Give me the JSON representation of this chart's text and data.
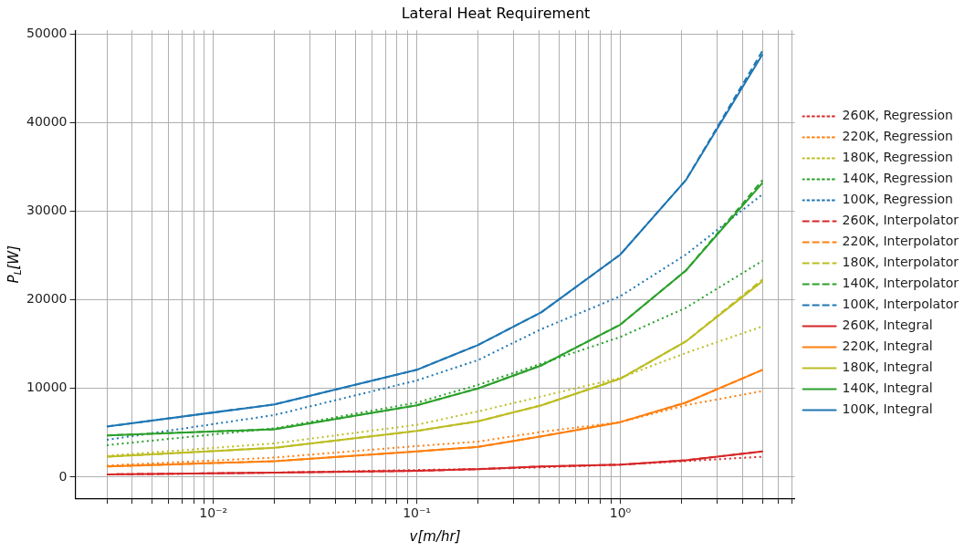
{
  "chart_data": {
    "type": "line",
    "title": "Lateral Heat Requirement",
    "xlabel": "v[m/hr]",
    "ylabel": "P$_{L}$[W]",
    "x": [
      0.003,
      0.02,
      0.1,
      0.2,
      0.41,
      1,
      2.1,
      5
    ],
    "series": [
      {
        "name": "260K, Regression",
        "color": "#d62728",
        "line_style": "dotted",
        "values": [
          300,
          500,
          800,
          900,
          1100,
          1400,
          1800,
          2300
        ]
      },
      {
        "name": "220K, Regression",
        "color": "#ff7f0e",
        "line_style": "dotted",
        "values": [
          1300,
          2200,
          3500,
          4000,
          5100,
          6200,
          8100,
          9700
        ]
      },
      {
        "name": "180K, Regression",
        "color": "#bcbd22",
        "line_style": "dotted",
        "values": [
          2400,
          3800,
          5900,
          7400,
          9100,
          11200,
          14000,
          17000
        ]
      },
      {
        "name": "140K, Regression",
        "color": "#2ca02c",
        "line_style": "dotted",
        "values": [
          3600,
          5500,
          8400,
          10400,
          12800,
          15800,
          19100,
          24400
        ]
      },
      {
        "name": "100K, Regression",
        "color": "#1f77b4",
        "line_style": "dotted",
        "values": [
          4200,
          7000,
          10900,
          13200,
          16700,
          20400,
          25100,
          31900
        ]
      },
      {
        "name": "260K, Interpolator",
        "color": "#d62728",
        "line_style": "dashed",
        "values": [
          300,
          500,
          700,
          900,
          1200,
          1400,
          1900,
          2900
        ]
      },
      {
        "name": "220K, Interpolator",
        "color": "#ff7f0e",
        "line_style": "dashed",
        "values": [
          1200,
          1800,
          2900,
          3400,
          4600,
          6200,
          8400,
          12100
        ]
      },
      {
        "name": "180K, Interpolator",
        "color": "#bcbd22",
        "line_style": "dashed",
        "values": [
          2300,
          3300,
          5200,
          6300,
          8100,
          11100,
          15300,
          22300
        ]
      },
      {
        "name": "140K, Interpolator",
        "color": "#2ca02c",
        "line_style": "dashed",
        "values": [
          4700,
          5400,
          8100,
          10000,
          12600,
          17200,
          23300,
          33500
        ]
      },
      {
        "name": "100K, Interpolator",
        "color": "#1f77b4",
        "line_style": "dashed",
        "values": [
          5700,
          8200,
          12100,
          14900,
          18600,
          25100,
          33500,
          48100
        ]
      },
      {
        "name": "260K, Integral",
        "color": "#d62728",
        "line_style": "solid",
        "values": [
          300,
          500,
          700,
          900,
          1200,
          1400,
          1900,
          2900
        ]
      },
      {
        "name": "220K, Integral",
        "color": "#ff7f0e",
        "line_style": "solid",
        "values": [
          1200,
          1800,
          2900,
          3400,
          4600,
          6200,
          8400,
          12100
        ]
      },
      {
        "name": "180K, Integral",
        "color": "#bcbd22",
        "line_style": "solid",
        "values": [
          2300,
          3300,
          5200,
          6300,
          8100,
          11100,
          15300,
          22100
        ]
      },
      {
        "name": "140K, Integral",
        "color": "#2ca02c",
        "line_style": "solid",
        "values": [
          4700,
          5400,
          8100,
          10000,
          12600,
          17200,
          23300,
          33200
        ]
      },
      {
        "name": "100K, Integral",
        "color": "#1f77b4",
        "line_style": "solid",
        "values": [
          5700,
          8200,
          12100,
          14900,
          18600,
          25100,
          33500,
          47700
        ]
      }
    ],
    "log": "x",
    "xlim": [
      0.0021,
      7.2
    ],
    "ylim": [
      -2400,
      50400
    ],
    "xticks": [
      {
        "value": 0.003,
        "label": null
      },
      {
        "value": 0.004,
        "label": null
      },
      {
        "value": 0.005,
        "label": null
      },
      {
        "value": 0.006,
        "label": null
      },
      {
        "value": 0.007,
        "label": null
      },
      {
        "value": 0.008,
        "label": null
      },
      {
        "value": 0.009,
        "label": null
      },
      {
        "value": 0.01,
        "label": "10⁻²"
      },
      {
        "value": 0.02,
        "label": null
      },
      {
        "value": 0.03,
        "label": null
      },
      {
        "value": 0.04,
        "label": null
      },
      {
        "value": 0.05,
        "label": null
      },
      {
        "value": 0.06,
        "label": null
      },
      {
        "value": 0.07,
        "label": null
      },
      {
        "value": 0.08,
        "label": null
      },
      {
        "value": 0.09,
        "label": null
      },
      {
        "value": 0.1,
        "label": "10⁻¹"
      },
      {
        "value": 0.2,
        "label": null
      },
      {
        "value": 0.3,
        "label": null
      },
      {
        "value": 0.4,
        "label": null
      },
      {
        "value": 0.5,
        "label": null
      },
      {
        "value": 0.6,
        "label": null
      },
      {
        "value": 0.7,
        "label": null
      },
      {
        "value": 0.8,
        "label": null
      },
      {
        "value": 0.9,
        "label": null
      },
      {
        "value": 1,
        "label": "10⁰"
      },
      {
        "value": 2,
        "label": null
      },
      {
        "value": 3,
        "label": null
      },
      {
        "value": 4,
        "label": null
      },
      {
        "value": 5,
        "label": null
      },
      {
        "value": 6,
        "label": null
      },
      {
        "value": 7,
        "label": null
      }
    ],
    "yticks": [
      0,
      10000,
      20000,
      30000,
      40000,
      50000
    ],
    "grid": true,
    "legend": "right",
    "marker": "none"
  }
}
